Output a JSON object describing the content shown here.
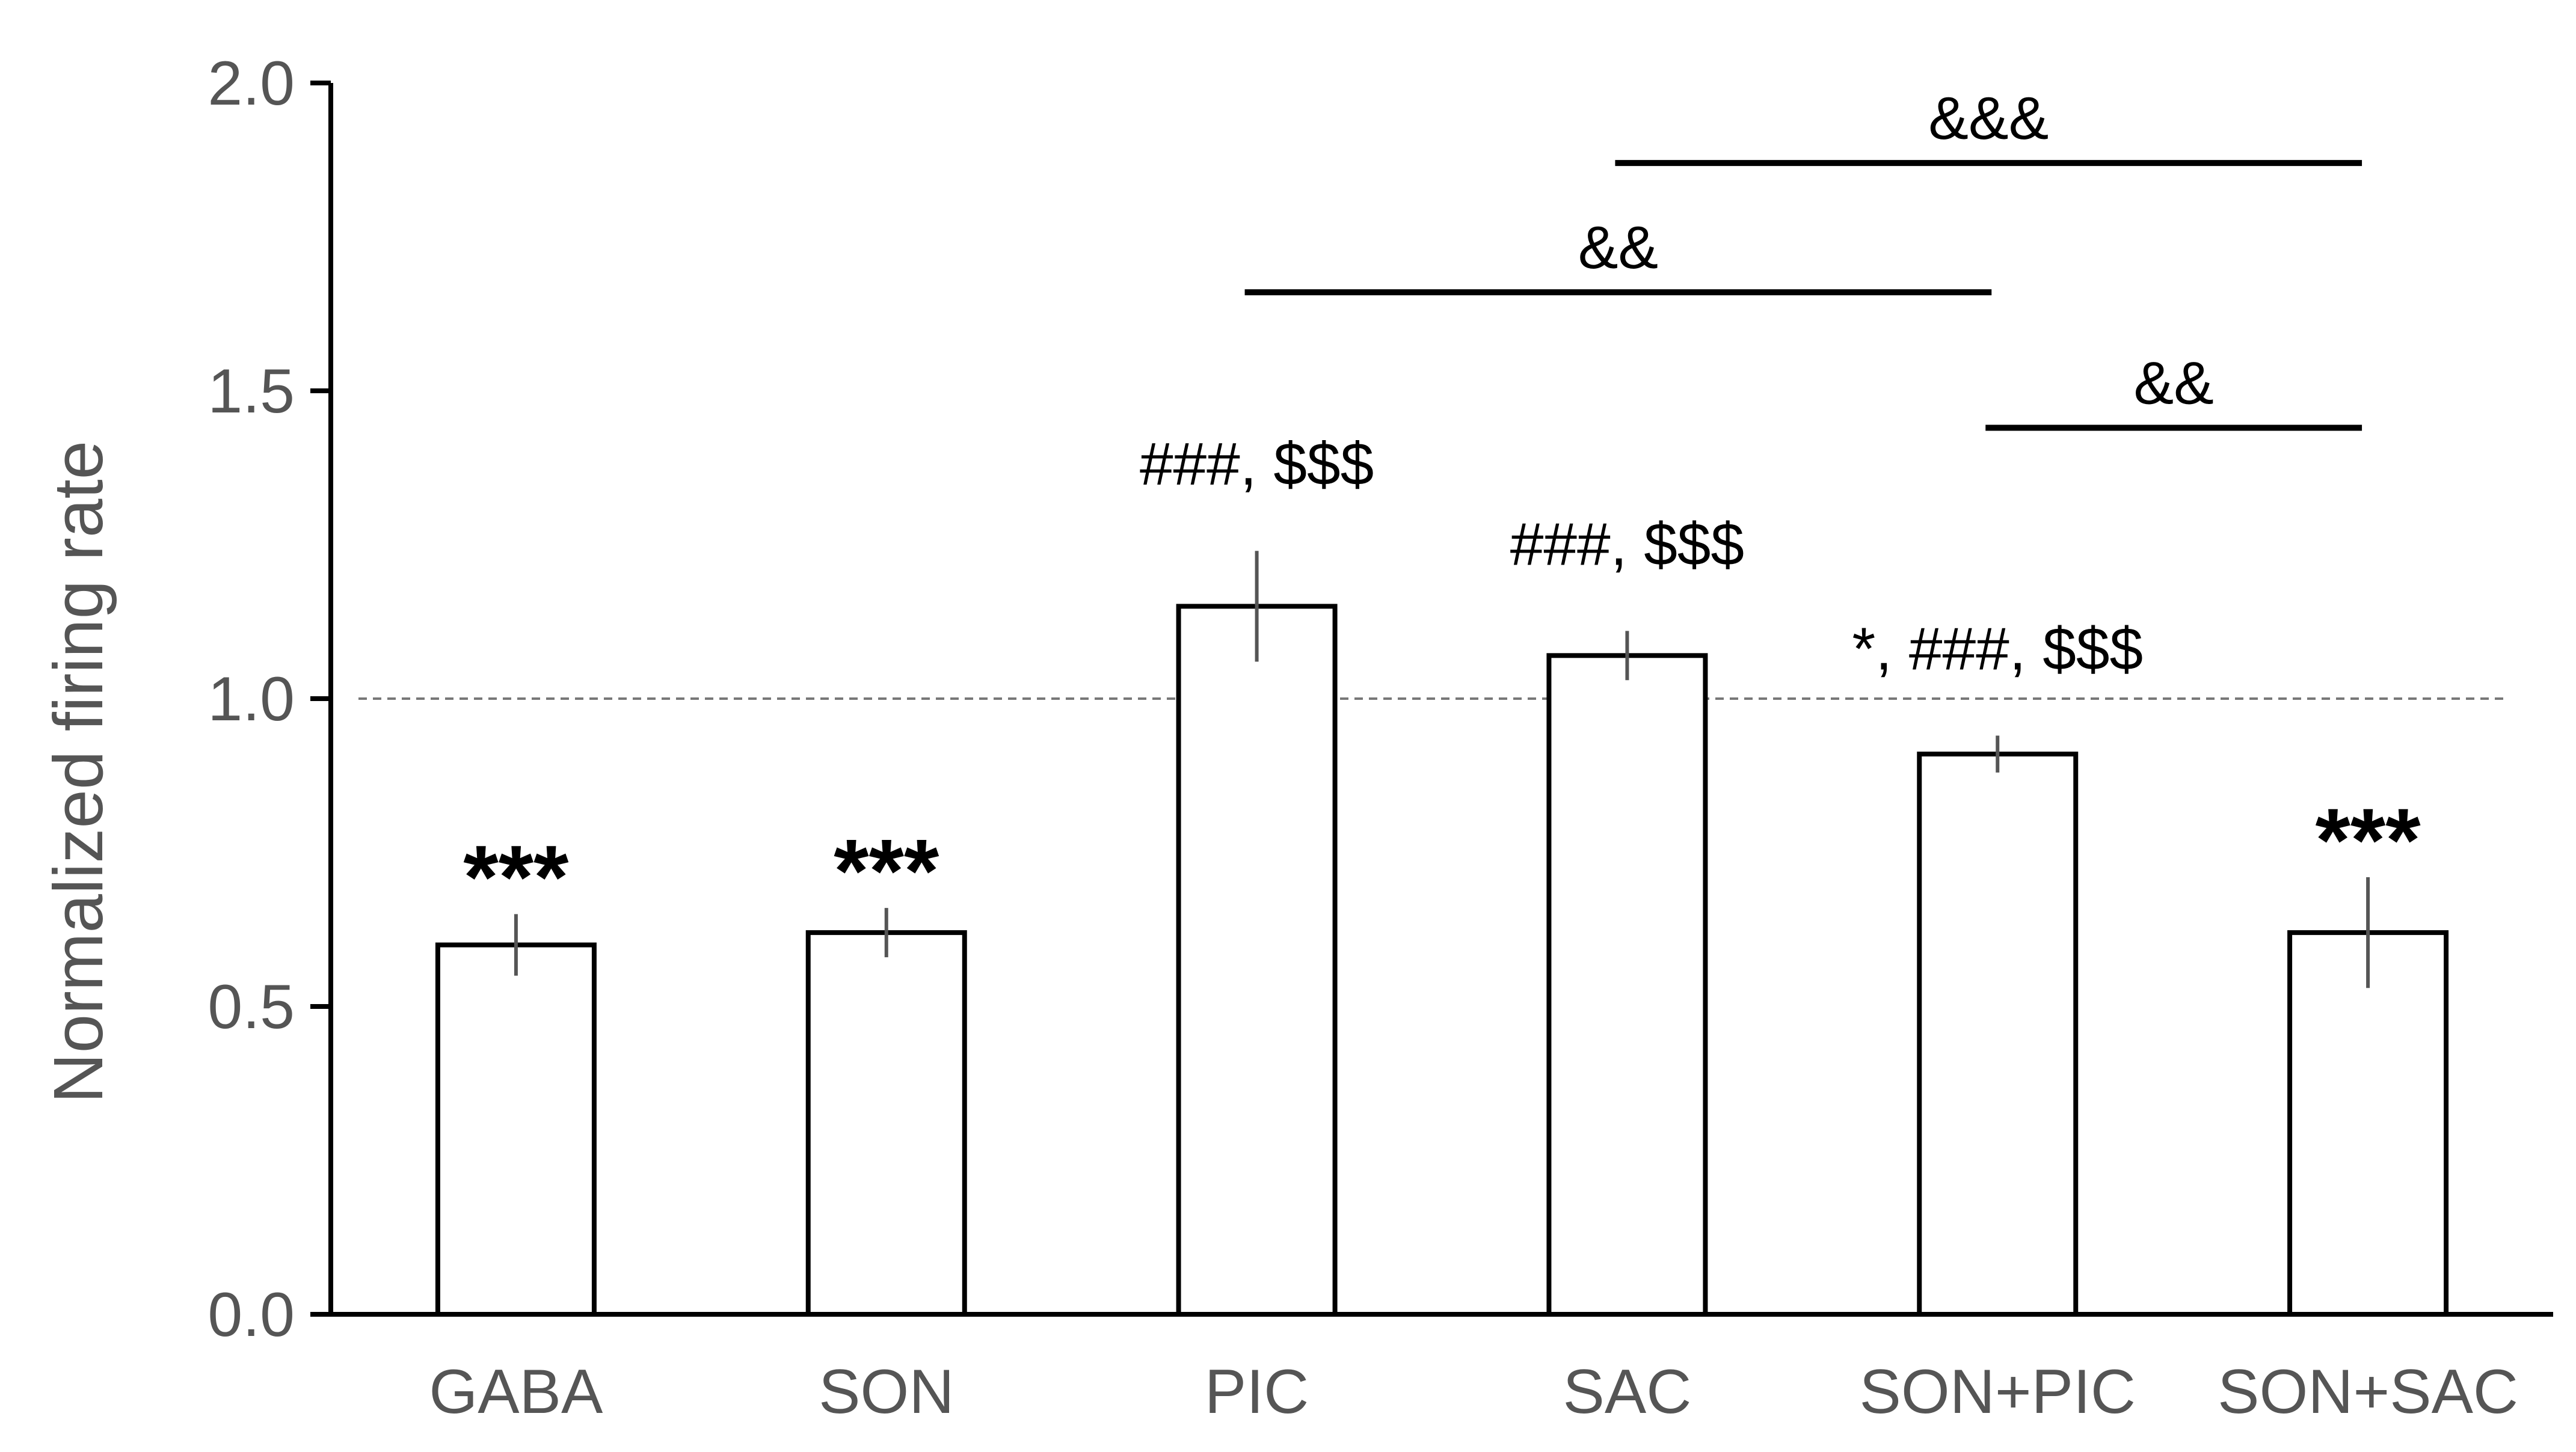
{
  "chart_data": {
    "type": "bar",
    "title": "",
    "xlabel": "",
    "ylabel": "Normalized  firing rate",
    "categories": [
      "GABA",
      "SON",
      "PIC",
      "SAC",
      "SON+PIC",
      "SON+SAC"
    ],
    "values": [
      0.6,
      0.62,
      1.15,
      1.07,
      0.91,
      0.62
    ],
    "error": [
      0.05,
      0.04,
      0.09,
      0.04,
      0.03,
      0.09
    ],
    "significance": [
      "***",
      "***",
      "###, $$$",
      "###, $$$",
      "*, ###, $$$",
      "***"
    ],
    "ylim": [
      0,
      2.0
    ],
    "yticks": [
      "0.0",
      "0.5",
      "1.0",
      "1.5",
      "2.0"
    ],
    "reference_line": 1.0,
    "brackets": [
      {
        "from": "SAC",
        "to": "SON+SAC",
        "label": "&&&",
        "y": 1.87
      },
      {
        "from": "PIC",
        "to": "SON+PIC",
        "label": "&&",
        "y": 1.66
      },
      {
        "from": "SON+PIC",
        "to": "SON+SAC",
        "label": "&&",
        "y": 1.44
      }
    ],
    "bar_color": "#ffffff",
    "bar_edge_color": "#000000",
    "grid": false,
    "legend": "none"
  }
}
